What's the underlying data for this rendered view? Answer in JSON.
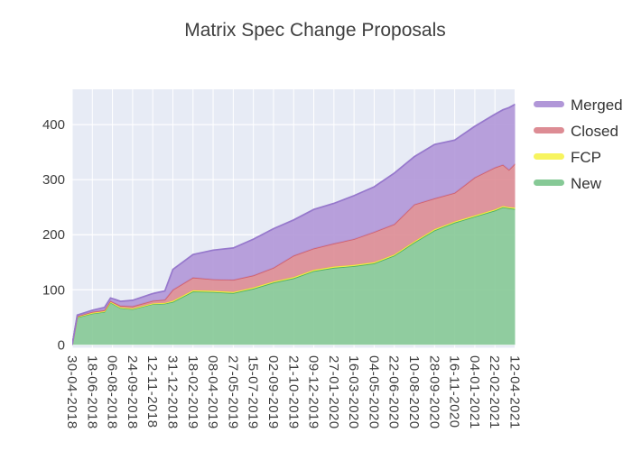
{
  "title": "Matrix Spec Change Proposals",
  "chart_data": {
    "type": "area",
    "stacked": true,
    "title": "Matrix Spec Change Proposals",
    "grid": true,
    "legend_position": "right",
    "plot_bg": "#e7ebf5",
    "grid_color": "#ffffff",
    "y_ticks": [
      0,
      100,
      200,
      300,
      400
    ],
    "y_range": [
      -5,
      464
    ],
    "x_tick_labels": [
      "30-04-2018",
      "18-06-2018",
      "06-08-2018",
      "24-09-2018",
      "12-11-2018",
      "31-12-2018",
      "18-02-2019",
      "08-04-2019",
      "27-05-2019",
      "15-07-2019",
      "02-09-2019",
      "21-10-2019",
      "09-12-2019",
      "27-01-2020",
      "16-03-2020",
      "04-05-2020",
      "22-06-2020",
      "10-08-2020",
      "28-09-2020",
      "16-11-2020",
      "04-01-2021",
      "22-02-2021",
      "12-04-2021"
    ],
    "x": [
      0,
      0.25,
      1,
      1.6,
      1.9,
      2,
      2.4,
      3,
      4,
      4.6,
      5,
      6,
      7,
      8,
      9,
      10,
      11,
      12,
      13,
      14,
      15,
      16,
      17,
      18,
      19,
      20,
      21,
      21.4,
      21.7,
      22
    ],
    "series": [
      {
        "name": "New",
        "line": "#4daf63",
        "fill": "#86c996",
        "values": [
          0,
          50,
          57,
          60,
          77,
          75,
          67,
          65,
          74,
          75,
          78,
          97,
          96,
          94,
          102,
          113,
          121,
          134,
          140,
          143,
          148,
          162,
          186,
          208,
          222,
          233,
          244,
          250,
          248,
          247
        ]
      },
      {
        "name": "FCP",
        "line": "#f3ef38",
        "fill": "#f7f45f",
        "values": [
          0,
          1,
          1,
          1,
          1,
          1,
          1,
          1,
          1,
          1,
          2,
          2,
          2,
          2,
          2,
          2,
          2,
          2,
          2,
          2,
          2,
          2,
          2,
          2,
          2,
          2,
          2,
          2,
          2,
          2
        ]
      },
      {
        "name": "Closed",
        "line": "#d2606c",
        "fill": "#dd8c94",
        "values": [
          0,
          1,
          2,
          2,
          2,
          2,
          3,
          4,
          5,
          6,
          20,
          23,
          21,
          22,
          22,
          25,
          39,
          39,
          42,
          47,
          55,
          55,
          67,
          56,
          52,
          69,
          76,
          75,
          68,
          80
        ]
      },
      {
        "name": "Merged",
        "line": "#9678cc",
        "fill": "#b197d8",
        "values": [
          0,
          2,
          3,
          5,
          5,
          6,
          8,
          11,
          13,
          16,
          37,
          42,
          53,
          58,
          66,
          71,
          65,
          71,
          73,
          79,
          82,
          93,
          87,
          98,
          96,
          93,
          97,
          100,
          113,
          108
        ]
      }
    ],
    "legend": [
      {
        "label": "Merged",
        "swatch": "#b197d8"
      },
      {
        "label": "Closed",
        "swatch": "#dd8c94"
      },
      {
        "label": "FCP",
        "swatch": "#f7f45f"
      },
      {
        "label": "New",
        "swatch": "#86c996"
      }
    ]
  }
}
